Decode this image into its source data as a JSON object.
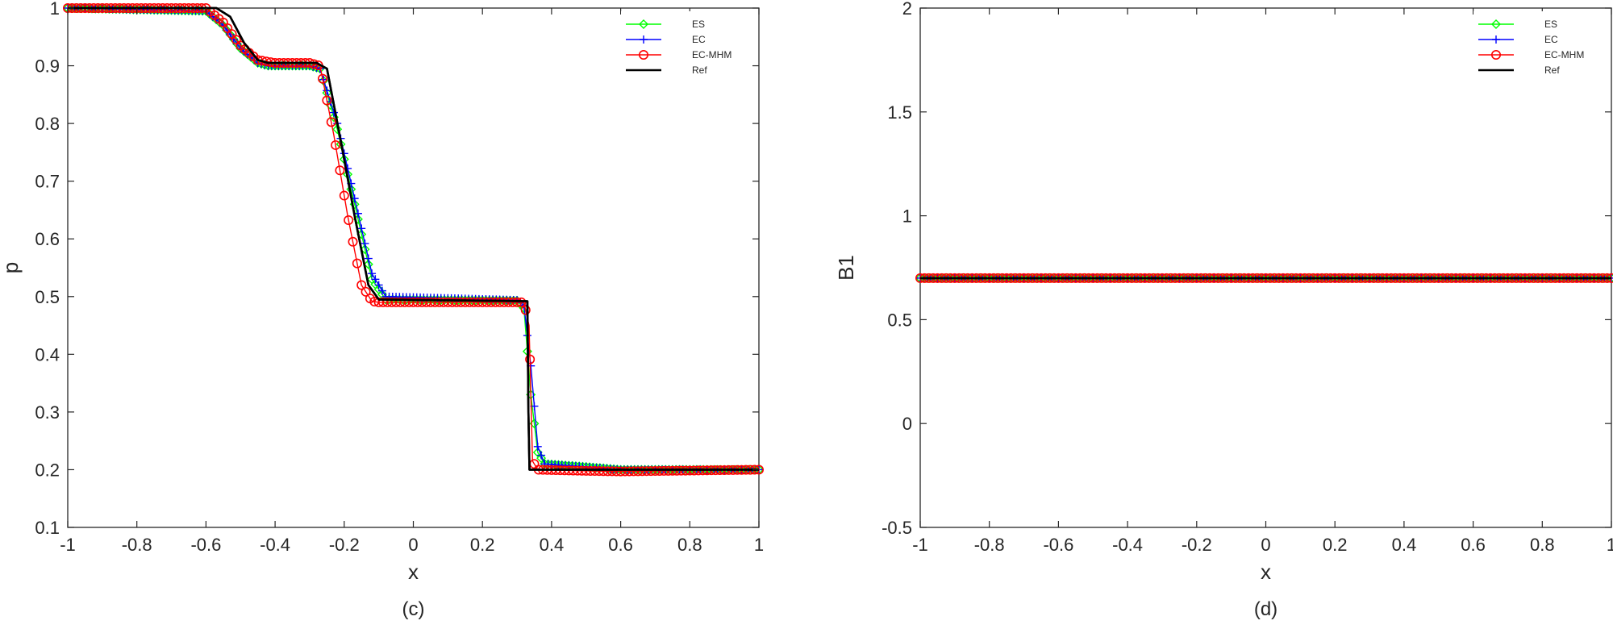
{
  "colors": {
    "ES": "#00ff00",
    "EC": "#0000ff",
    "EC-MHM": "#ff0000",
    "Ref": "#000000"
  },
  "chart_data": [
    {
      "type": "line",
      "caption": "(c)",
      "xlabel": "x",
      "ylabel": "p",
      "xlim": [
        -1,
        1
      ],
      "ylim": [
        0.1,
        1
      ],
      "xticks": [
        -1,
        -0.8,
        -0.6,
        -0.4,
        -0.2,
        0,
        0.2,
        0.4,
        0.6,
        0.8,
        1
      ],
      "xtick_labels": [
        "-1",
        "-0.8",
        "-0.6",
        "-0.4",
        "-0.2",
        "0",
        "0.2",
        "0.4",
        "0.6",
        "0.8",
        "1"
      ],
      "yticks": [
        0.1,
        0.2,
        0.3,
        0.4,
        0.5,
        0.6,
        0.7,
        0.8,
        0.9,
        1
      ],
      "ytick_labels": [
        "0.1",
        "0.2",
        "0.3",
        "0.4",
        "0.5",
        "0.6",
        "0.7",
        "0.8",
        "0.9",
        "1"
      ],
      "legend_position": "top-right",
      "series": [
        {
          "name": "ES",
          "marker": "diamond",
          "x": [
            -1,
            -0.6,
            -0.55,
            -0.5,
            -0.45,
            -0.42,
            -0.3,
            -0.27,
            -0.22,
            -0.17,
            -0.12,
            -0.08,
            0.3,
            0.32,
            0.34,
            0.36,
            0.38,
            0.5,
            0.6,
            1
          ],
          "y": [
            1,
            0.995,
            0.97,
            0.93,
            0.905,
            0.9,
            0.9,
            0.895,
            0.79,
            0.66,
            0.53,
            0.495,
            0.493,
            0.48,
            0.33,
            0.23,
            0.21,
            0.205,
            0.2,
            0.2
          ]
        },
        {
          "name": "EC",
          "marker": "plus",
          "x": [
            -1,
            -0.6,
            -0.55,
            -0.5,
            -0.45,
            -0.42,
            -0.3,
            -0.27,
            -0.22,
            -0.17,
            -0.12,
            -0.08,
            0.3,
            0.32,
            0.34,
            0.36,
            0.38,
            0.5,
            0.6,
            1
          ],
          "y": [
            1,
            0.995,
            0.97,
            0.93,
            0.905,
            0.9,
            0.9,
            0.895,
            0.8,
            0.67,
            0.54,
            0.5,
            0.494,
            0.485,
            0.38,
            0.24,
            0.21,
            0.205,
            0.2,
            0.2
          ]
        },
        {
          "name": "EC-MHM",
          "marker": "circle",
          "x": [
            -1,
            -0.6,
            -0.55,
            -0.5,
            -0.45,
            -0.4,
            -0.3,
            -0.27,
            -0.23,
            -0.19,
            -0.15,
            -0.12,
            -0.1,
            0.32,
            0.335,
            0.345,
            0.36,
            0.5,
            0.6,
            1
          ],
          "y": [
            1,
            1,
            0.975,
            0.935,
            0.91,
            0.905,
            0.905,
            0.9,
            0.78,
            0.64,
            0.52,
            0.492,
            0.49,
            0.49,
            0.45,
            0.215,
            0.2,
            0.198,
            0.197,
            0.2
          ]
        },
        {
          "name": "Ref",
          "marker": "none",
          "x": [
            -1,
            -0.57,
            -0.53,
            -0.49,
            -0.45,
            -0.42,
            -0.28,
            -0.25,
            -0.21,
            -0.17,
            -0.13,
            -0.1,
            0.33,
            0.333,
            0.336,
            0.36,
            1
          ],
          "y": [
            1,
            1,
            0.985,
            0.94,
            0.91,
            0.905,
            0.905,
            0.895,
            0.77,
            0.64,
            0.52,
            0.495,
            0.492,
            0.3,
            0.2,
            0.2,
            0.2
          ]
        }
      ]
    },
    {
      "type": "line",
      "caption": "(d)",
      "xlabel": "x",
      "ylabel": "B1",
      "xlim": [
        -1,
        1
      ],
      "ylim": [
        -0.5,
        2
      ],
      "xticks": [
        -1,
        -0.8,
        -0.6,
        -0.4,
        -0.2,
        0,
        0.2,
        0.4,
        0.6,
        0.8,
        1
      ],
      "xtick_labels": [
        "-1",
        "-0.8",
        "-0.6",
        "-0.4",
        "-0.2",
        "0",
        "0.2",
        "0.4",
        "0.6",
        "0.8",
        "1"
      ],
      "yticks": [
        -0.5,
        0,
        0.5,
        1,
        1.5,
        2
      ],
      "ytick_labels": [
        "-0.5",
        "0",
        "0.5",
        "1",
        "1.5",
        "2"
      ],
      "legend_position": "top-right",
      "series": [
        {
          "name": "ES",
          "marker": "diamond",
          "x": [
            -1,
            1
          ],
          "y": [
            0.7,
            0.7
          ]
        },
        {
          "name": "EC",
          "marker": "plus",
          "x": [
            -1,
            1
          ],
          "y": [
            0.7,
            0.7
          ]
        },
        {
          "name": "EC-MHM",
          "marker": "circle",
          "x": [
            -1,
            1
          ],
          "y": [
            0.7,
            0.7
          ]
        },
        {
          "name": "Ref",
          "marker": "none",
          "x": [
            -1,
            1
          ],
          "y": [
            0.7,
            0.7
          ]
        }
      ]
    }
  ]
}
